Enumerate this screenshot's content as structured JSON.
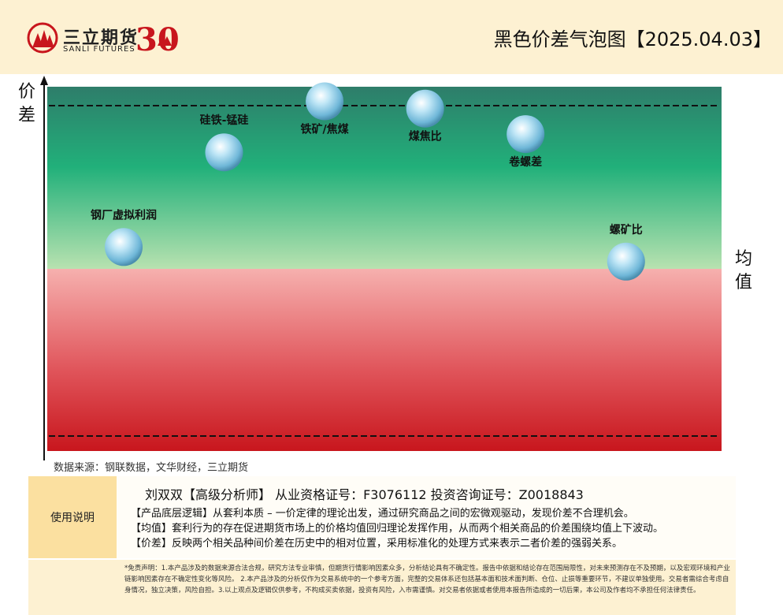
{
  "header": {
    "brand_cn": "三立期货",
    "brand_en": "SANLI FUTURES",
    "anniversary": "30",
    "title": "黑色价差气泡图【2025.04.03】"
  },
  "colors": {
    "header_bg": "#fdf1d2",
    "band_top": "#2e7d6a",
    "band_green": "#21b07a",
    "band_light_green": "#b8e2b0",
    "band_pink": "#f6b0ae",
    "band_red": "#c8161d",
    "bubble": "#7fc8e8"
  },
  "chart_data": {
    "type": "scatter",
    "title": "黑色价差气泡图",
    "xlabel": "均值",
    "ylabel": "价差",
    "grid": false,
    "reference_lines": [
      "upper-dashed",
      "lower-dashed"
    ],
    "points": [
      {
        "label": "钢厂虚拟利润",
        "x": 1,
        "y": 0.56
      },
      {
        "label": "硅铁-锰硅",
        "x": 2,
        "y": 0.82
      },
      {
        "label": "铁矿/焦煤",
        "x": 3,
        "y": 0.96
      },
      {
        "label": "煤焦比",
        "x": 4,
        "y": 0.94
      },
      {
        "label": "卷螺差",
        "x": 5,
        "y": 0.87
      },
      {
        "label": "螺矿比",
        "x": 6,
        "y": 0.52
      }
    ]
  },
  "source": "数据来源：钢联数据，文华财经，三立期货",
  "info": {
    "left_label": "使用说明",
    "analyst": "刘双双【高级分析师】    从业资格证号：F3076112   投资咨询证号：Z0018843",
    "lines": [
      "【产品底层逻辑】从套利本质 – 一价定律的理论出发，通过研究商品之间的宏微观驱动，发现价差不合理机会。",
      "【均值】套利行为的存在促进期货市场上的价格均值回归理论发挥作用，从而两个相关商品的价差围绕均值上下波动。",
      "【价差】反映两个相关品种间价差在历史中的相对位置，采用标准化的处理方式来表示二者价差的强弱关系。"
    ]
  },
  "disclaimer": "*免责声明：1.本产品涉及的数据来源合法合规，研究方法专业审慎，但期货行情影响因素众多，分析结论具有不确定性。报告中依据和结论存在范围局限性，对未来预测存在不及预期，以及宏观环境和产业链影响因素存在不确定性变化等风险。 2.本产品涉及的分析仅作为交易系统中的一个参考方面，完整的交易体系还包括基本面和技术面判断、仓位、止损等重要环节，不建议单独使用。交易者需综合考虑自身情况，独立决策，风险自担。3.以上观点及逻辑仅供参考，不构成买卖依据，投资有风险，入市需谨慎。对交易者依据或者使用本报告所造成的一切后果，本公司及作者均不承担任何法律责任。"
}
